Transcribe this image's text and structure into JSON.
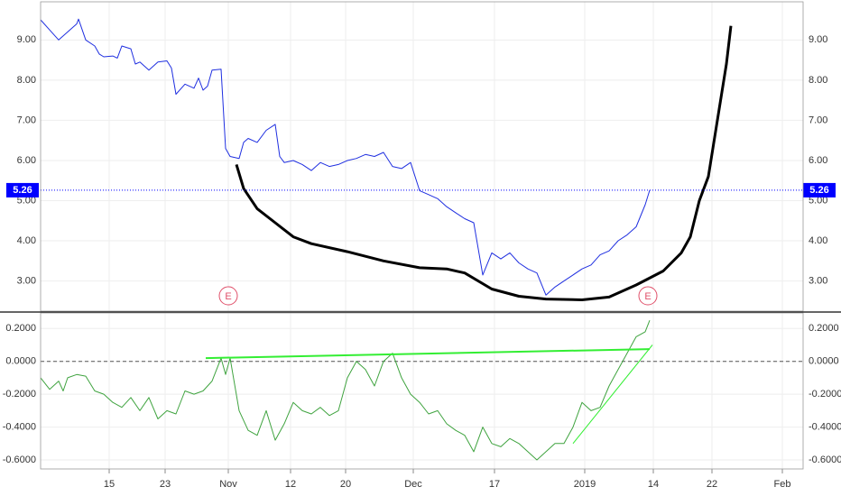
{
  "chart_data": [
    {
      "type": "line",
      "xlim": [
        0,
        84.5
      ],
      "ylim": [
        2.25,
        9.95
      ],
      "yticks": [
        {
          "value": 3,
          "label": "3.00"
        },
        {
          "value": 4,
          "label": "4.00"
        },
        {
          "value": 5,
          "label": "5.00"
        },
        {
          "value": 6,
          "label": "6.00"
        },
        {
          "value": 7,
          "label": "7.00"
        },
        {
          "value": 8,
          "label": "8.00"
        },
        {
          "value": 9,
          "label": "9.00"
        }
      ],
      "grid": true,
      "last_price": 5.26,
      "last_price_color": "#0000ff",
      "events": [
        {
          "x": 20.8,
          "label": "E"
        },
        {
          "x": 67.3,
          "label": "E"
        }
      ],
      "series": [
        {
          "color": "#1f2fe0",
          "line_width": 1,
          "x": [
            0,
            1,
            2,
            3,
            4,
            4.2,
            5,
            6,
            6.5,
            7,
            8,
            8.5,
            9,
            10,
            10.5,
            11,
            12,
            13,
            14,
            14.5,
            15,
            16,
            17,
            17.5,
            18,
            18.5,
            19,
            20,
            20.5,
            21,
            22,
            22.5,
            23,
            24,
            25,
            26,
            26.5,
            27,
            28,
            29,
            30,
            31,
            32,
            33,
            34,
            35,
            36,
            37,
            38,
            39,
            40,
            41,
            42,
            43,
            44,
            45,
            46,
            47,
            48,
            49,
            50,
            51,
            52,
            53,
            54,
            55,
            56,
            57,
            58,
            59,
            60,
            61,
            62,
            63,
            64,
            65,
            66,
            67,
            67.5
          ],
          "values": [
            9.5,
            9.25,
            9.0,
            9.2,
            9.4,
            9.52,
            9.0,
            8.85,
            8.65,
            8.58,
            8.6,
            8.55,
            8.85,
            8.78,
            8.4,
            8.45,
            8.25,
            8.45,
            8.48,
            8.3,
            7.65,
            7.9,
            7.8,
            8.05,
            7.75,
            7.85,
            8.25,
            8.27,
            6.3,
            6.1,
            6.05,
            6.45,
            6.55,
            6.45,
            6.75,
            6.9,
            6.1,
            5.95,
            6.0,
            5.9,
            5.75,
            5.95,
            5.85,
            5.9,
            6.0,
            6.05,
            6.15,
            6.1,
            6.2,
            5.85,
            5.8,
            5.95,
            5.25,
            5.15,
            5.05,
            4.85,
            4.7,
            4.55,
            4.45,
            3.15,
            3.7,
            3.55,
            3.7,
            3.45,
            3.3,
            3.2,
            2.65,
            2.85,
            3.0,
            3.15,
            3.3,
            3.4,
            3.65,
            3.75,
            4.0,
            4.15,
            4.35,
            4.9,
            5.26
          ]
        },
        {
          "color": "#000000",
          "line_width": 3,
          "x": [
            21.7,
            22.5,
            24,
            26,
            28,
            30,
            34,
            38,
            42,
            45,
            47,
            50,
            53,
            56,
            60,
            63,
            66,
            69,
            71,
            72,
            73,
            74,
            75,
            76,
            76.5
          ],
          "values": [
            5.9,
            5.3,
            4.8,
            4.45,
            4.1,
            3.93,
            3.73,
            3.5,
            3.33,
            3.3,
            3.2,
            2.8,
            2.62,
            2.55,
            2.53,
            2.6,
            2.9,
            3.25,
            3.7,
            4.1,
            5.0,
            5.6,
            7.0,
            8.4,
            9.35
          ]
        }
      ]
    },
    {
      "type": "line",
      "xlim": [
        0,
        84.5
      ],
      "ylim": [
        -0.655,
        0.295
      ],
      "yticks": [
        {
          "value": -0.6,
          "label": "-0.6000"
        },
        {
          "value": -0.4,
          "label": "-0.4000"
        },
        {
          "value": -0.2,
          "label": "-0.2000"
        },
        {
          "value": 0,
          "label": "0.0000"
        },
        {
          "value": 0.2,
          "label": "0.2000"
        }
      ],
      "xticks": [
        {
          "value": 7.6,
          "label": "15"
        },
        {
          "value": 13.8,
          "label": "23"
        },
        {
          "value": 20.8,
          "label": "Nov"
        },
        {
          "value": 27.7,
          "label": "12"
        },
        {
          "value": 33.8,
          "label": "20"
        },
        {
          "value": 41.3,
          "label": "Dec"
        },
        {
          "value": 50.3,
          "label": "17"
        },
        {
          "value": 60.3,
          "label": "2019"
        },
        {
          "value": 67.9,
          "label": "14"
        },
        {
          "value": 74.4,
          "label": "22"
        },
        {
          "value": 82.2,
          "label": "Feb"
        }
      ],
      "grid": true,
      "reference_line": 0,
      "series": [
        {
          "color": "#3fa33f",
          "line_width": 1,
          "x": [
            0,
            1,
            2,
            2.5,
            3,
            4,
            5,
            6,
            7,
            8,
            9,
            10,
            11,
            12,
            13,
            14,
            15,
            16,
            17,
            18,
            19,
            20,
            20.5,
            21,
            22,
            23,
            24,
            25,
            26,
            27,
            28,
            29,
            30,
            31,
            32,
            33,
            34,
            35,
            36,
            37,
            38,
            39,
            40,
            41,
            42,
            43,
            44,
            45,
            46,
            47,
            48,
            49,
            50,
            51,
            52,
            53,
            54,
            55,
            56,
            57,
            58,
            59,
            60,
            61,
            62,
            63,
            64,
            65,
            66,
            67,
            67.5
          ],
          "values": [
            -0.1,
            -0.17,
            -0.12,
            -0.18,
            -0.1,
            -0.08,
            -0.09,
            -0.18,
            -0.2,
            -0.25,
            -0.28,
            -0.22,
            -0.3,
            -0.22,
            -0.35,
            -0.3,
            -0.32,
            -0.18,
            -0.2,
            -0.18,
            -0.12,
            0.02,
            -0.08,
            0.02,
            -0.3,
            -0.42,
            -0.45,
            -0.3,
            -0.48,
            -0.38,
            -0.25,
            -0.3,
            -0.32,
            -0.28,
            -0.33,
            -0.3,
            -0.1,
            0.0,
            -0.05,
            -0.15,
            0.0,
            0.05,
            -0.1,
            -0.2,
            -0.25,
            -0.32,
            -0.3,
            -0.38,
            -0.42,
            -0.45,
            -0.55,
            -0.4,
            -0.5,
            -0.52,
            -0.47,
            -0.5,
            -0.55,
            -0.6,
            -0.55,
            -0.5,
            -0.5,
            -0.4,
            -0.25,
            -0.3,
            -0.28,
            -0.15,
            -0.05,
            0.05,
            0.15,
            0.18,
            0.25
          ]
        },
        {
          "color": "#33ee33",
          "line_width": 2,
          "x": [
            18.3,
            67.5
          ],
          "values": [
            0.02,
            0.075
          ]
        },
        {
          "color": "#33ee33",
          "line_width": 1,
          "x": [
            59,
            67.8
          ],
          "values": [
            -0.5,
            0.1
          ]
        }
      ]
    }
  ]
}
